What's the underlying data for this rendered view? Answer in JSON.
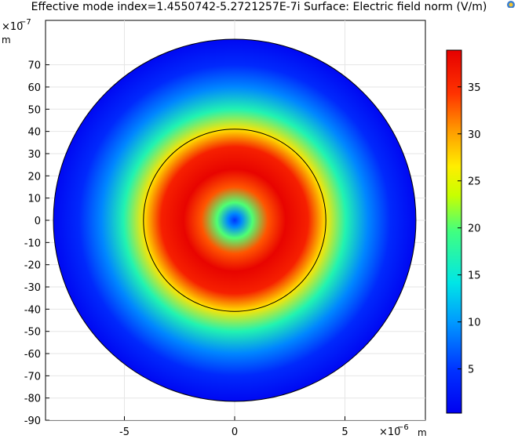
{
  "header": {
    "title": "Effective mode index=1.4550742-5.2721257E-7i   Surface: Electric field norm (V/m)"
  },
  "chart_data": {
    "type": "heatmap",
    "title": "Effective mode index=1.4550742-5.2721257E-7i   Surface: Electric field norm (V/m)",
    "x_axis": {
      "multiplier_label": "×10",
      "multiplier_exponent": "−6",
      "unit": "m",
      "range": [
        -8.7,
        8.7
      ],
      "ticks": [
        -5,
        0,
        5
      ],
      "tick_labels": [
        "-5",
        "0",
        "5"
      ]
    },
    "y_axis": {
      "multiplier_label": "×10",
      "multiplier_exponent": "−7",
      "unit": "m",
      "range": [
        -90,
        90
      ],
      "ticks": [
        70,
        60,
        50,
        40,
        30,
        20,
        10,
        0,
        -10,
        -20,
        -30,
        -40,
        -50,
        -60,
        -70,
        -80,
        -90
      ],
      "tick_labels": [
        "70",
        "60",
        "50",
        "40",
        "30",
        "20",
        "10",
        "0",
        "-10",
        "-20",
        "-30",
        "-40",
        "-50",
        "-60",
        "-70",
        "-80",
        "-90"
      ]
    },
    "geometry": {
      "cladding_radius": 81.5,
      "core_radius": 41,
      "units": "×10⁻⁷ m"
    },
    "field_profile": {
      "description_units": "V/m",
      "center_value": 5,
      "peak_value": 38.5,
      "peak_radius": 23,
      "core_edge_value": 27,
      "cladding_edge_value": 1
    },
    "colorbar": {
      "range": [
        0.3,
        38.9
      ],
      "ticks": [
        5,
        10,
        15,
        20,
        25,
        30,
        35
      ],
      "tick_labels": [
        "5",
        "10",
        "15",
        "20",
        "25",
        "30",
        "35"
      ],
      "colormap": "rainbow"
    },
    "grid": true,
    "legend": "colorbar-right"
  }
}
